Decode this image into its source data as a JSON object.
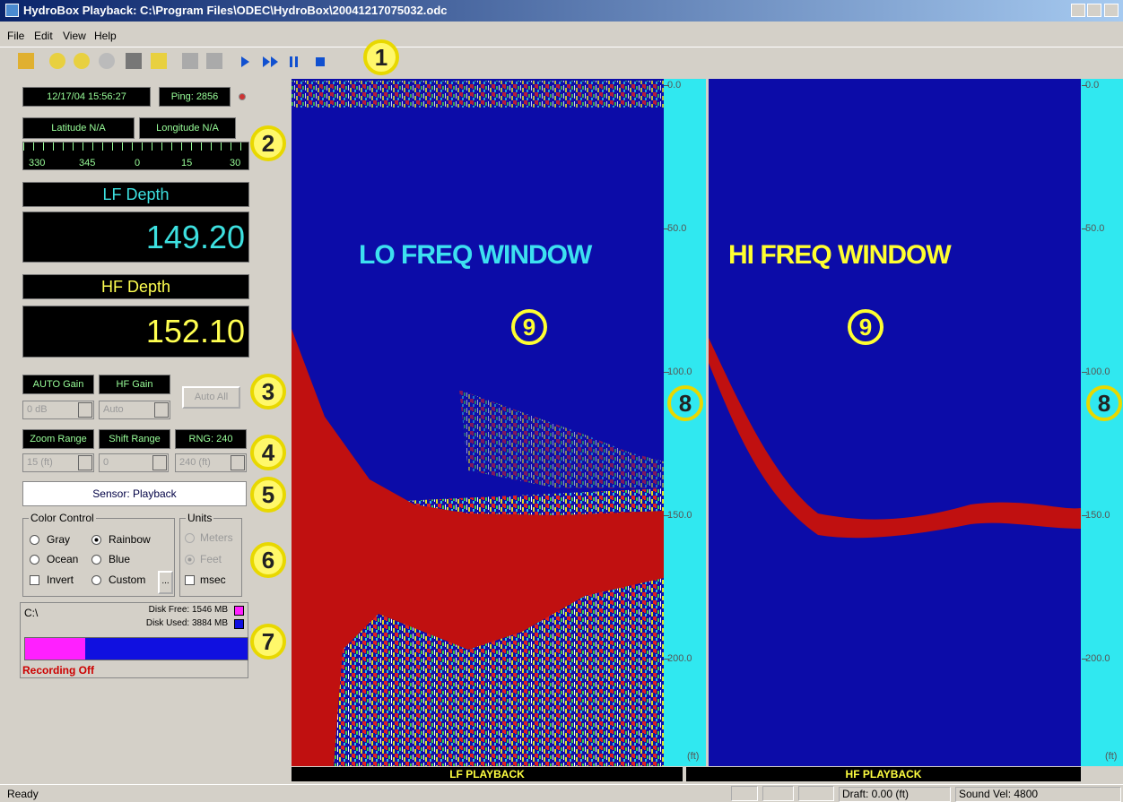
{
  "window": {
    "title": "HydroBox Playback: C:\\Program Files\\ODEC\\HydroBox\\20041217075032.odc"
  },
  "menu": [
    "File",
    "Edit",
    "View",
    "Help"
  ],
  "callouts": [
    "1",
    "2",
    "3",
    "4",
    "5",
    "6",
    "7",
    "8",
    "8",
    "9",
    "9"
  ],
  "left_panel": {
    "datetime": "12/17/04 15:56:27",
    "ping": "Ping: 2856",
    "latitude": "Latitude N/A",
    "longitude": "Longitude N/A",
    "compass": [
      "330",
      "345",
      "0",
      "15",
      "30"
    ],
    "lf_depth_title": "LF Depth",
    "lf_depth": "149.20",
    "hf_depth_title": "HF Depth",
    "hf_depth": "152.10",
    "auto_gain": "AUTO Gain",
    "hf_gain": "HF Gain",
    "auto_all": "Auto All",
    "gain_value": "0 dB",
    "hf_gain_value": "Auto",
    "zoom_range": "Zoom Range",
    "shift_range": "Shift Range",
    "rng": "RNG: 240",
    "zoom_value": "15 (ft)",
    "shift_value": "0",
    "rng_value": "240 (ft)",
    "sensor": "Sensor: Playback",
    "color_control": {
      "title": "Color Control",
      "options": [
        "Gray",
        "Rainbow",
        "Ocean",
        "Blue",
        "Invert",
        "Custom"
      ],
      "more": "..."
    },
    "units": {
      "title": "Units",
      "options": [
        "Meters",
        "Feet",
        "msec"
      ]
    },
    "disk": {
      "drive": "C:\\",
      "free": "Disk Free: 1546 MB",
      "used": "Disk Used: 3884 MB",
      "recording": "Recording Off"
    }
  },
  "display": {
    "lf_title": "LO FREQ WINDOW",
    "hf_title": "HI FREQ WINDOW",
    "scale_labels": [
      "0.0",
      "50.0",
      "100.0",
      "150.0",
      "200.0"
    ],
    "scale_unit": "(ft)",
    "lf_footer": "LF PLAYBACK",
    "hf_footer": "HF PLAYBACK"
  },
  "status_bar": {
    "status": "Ready",
    "draft": "Draft: 0.00 (ft)",
    "sound_vel": "Sound Vel: 4800"
  }
}
